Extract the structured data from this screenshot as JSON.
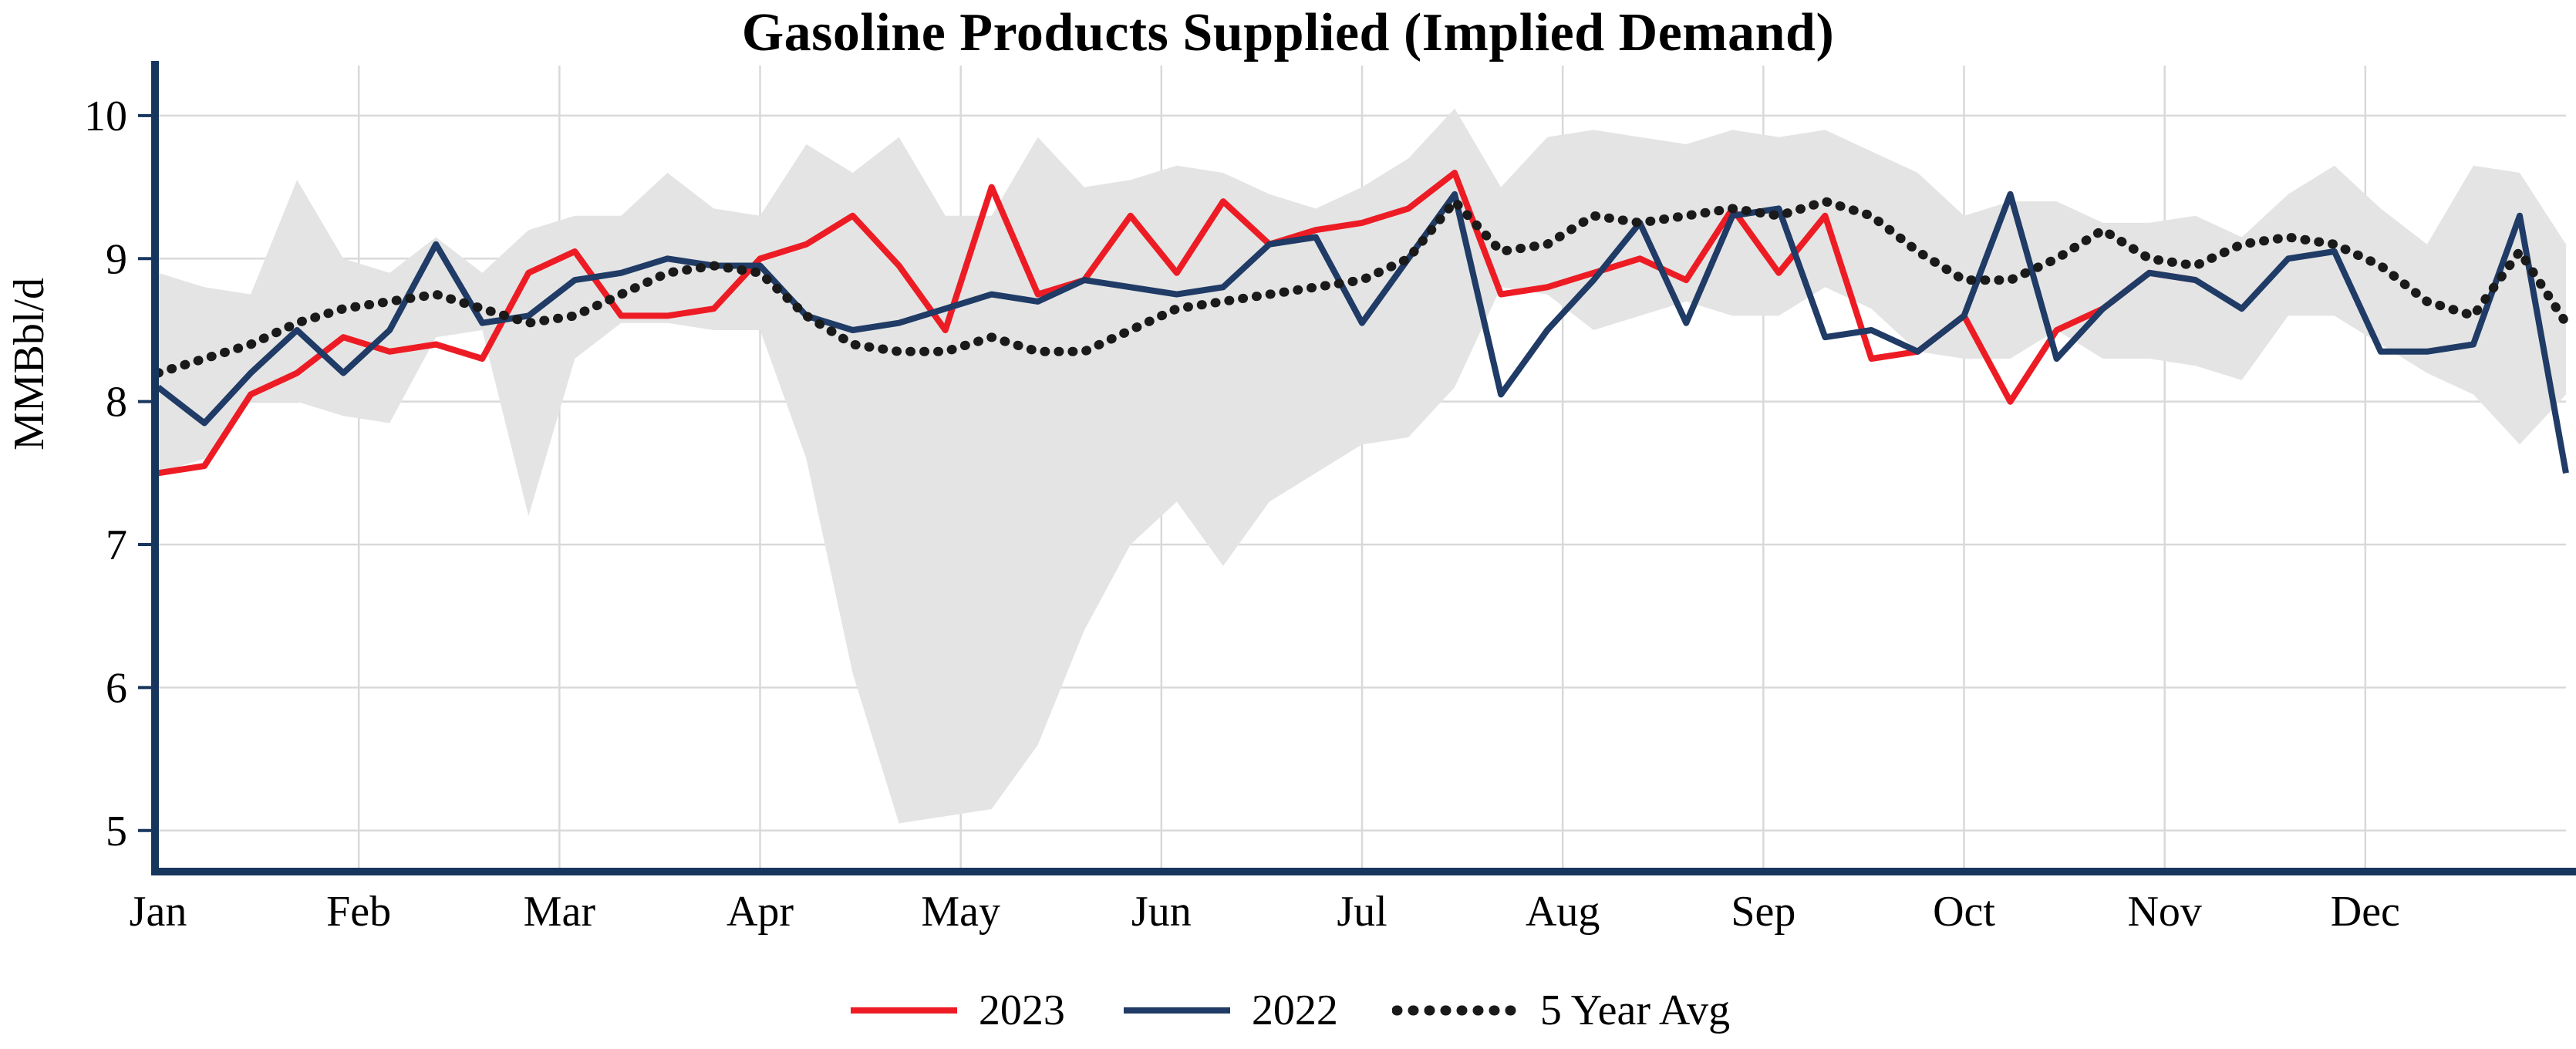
{
  "title": "Gasoline Products Supplied (Implied Demand)",
  "chart_data": {
    "type": "line",
    "title": "Gasoline Products Supplied (Implied Demand)",
    "ylabel": "MMBbl/d",
    "ylim": [
      4.74,
      10.35
    ],
    "yticks": [
      5,
      6,
      7,
      8,
      9,
      10
    ],
    "x_unit": "week",
    "months": [
      "Jan",
      "Feb",
      "Mar",
      "Apr",
      "May",
      "Jun",
      "Jul",
      "Aug",
      "Sep",
      "Oct",
      "Nov",
      "Dec"
    ],
    "grid": true,
    "legend_position": "bottom",
    "axis_color": "#17365d",
    "grid_color": "#d9d9d9",
    "band": {
      "name": "5 Year Range",
      "color": "#e4e4e4",
      "upper": [
        8.9,
        8.8,
        8.75,
        9.55,
        9.0,
        8.9,
        9.15,
        8.9,
        9.2,
        9.3,
        9.3,
        9.6,
        9.35,
        9.3,
        9.8,
        9.6,
        9.85,
        9.3,
        9.3,
        9.85,
        9.5,
        9.55,
        9.65,
        9.6,
        9.45,
        9.35,
        9.5,
        9.7,
        10.05,
        9.5,
        9.85,
        9.9,
        9.85,
        9.8,
        9.9,
        9.85,
        9.9,
        9.75,
        9.6,
        9.3,
        9.4,
        9.4,
        9.25,
        9.25,
        9.3,
        9.15,
        9.45,
        9.65,
        9.35,
        9.1,
        9.65,
        9.6,
        9.1
      ],
      "lower": [
        7.5,
        7.6,
        8.0,
        8.0,
        7.9,
        7.85,
        8.45,
        8.5,
        7.2,
        8.3,
        8.55,
        8.55,
        8.5,
        8.5,
        7.6,
        6.1,
        5.05,
        5.1,
        5.15,
        5.6,
        6.4,
        7.0,
        7.3,
        6.85,
        7.3,
        7.5,
        7.7,
        7.75,
        8.1,
        8.8,
        8.75,
        8.5,
        8.6,
        8.7,
        8.6,
        8.6,
        8.8,
        8.65,
        8.35,
        8.3,
        8.3,
        8.5,
        8.3,
        8.3,
        8.25,
        8.15,
        8.6,
        8.6,
        8.4,
        8.2,
        8.05,
        7.7,
        8.05
      ]
    },
    "series": [
      {
        "name": "2023",
        "color": "#ed1c24",
        "style": "solid",
        "values": [
          7.5,
          7.55,
          8.05,
          8.2,
          8.45,
          8.35,
          8.4,
          8.3,
          8.9,
          9.05,
          8.6,
          8.6,
          8.65,
          9.0,
          9.1,
          9.3,
          8.95,
          8.5,
          9.5,
          8.75,
          8.85,
          9.3,
          8.9,
          9.4,
          9.1,
          9.2,
          9.25,
          9.35,
          9.6,
          8.75,
          8.8,
          8.9,
          9.0,
          8.85,
          9.35,
          8.9,
          9.3,
          8.3,
          8.35,
          8.6,
          8.0,
          8.5,
          8.65,
          8.9,
          8.85
        ]
      },
      {
        "name": "2022",
        "color": "#1f3b66",
        "style": "solid",
        "values": [
          8.1,
          7.85,
          8.2,
          8.5,
          8.2,
          8.5,
          9.1,
          8.55,
          8.6,
          8.85,
          8.9,
          9.0,
          8.95,
          8.95,
          8.6,
          8.5,
          8.55,
          8.65,
          8.75,
          8.7,
          8.85,
          8.8,
          8.75,
          8.8,
          9.1,
          9.15,
          8.55,
          9.0,
          9.45,
          8.05,
          8.5,
          8.85,
          9.25,
          8.55,
          9.3,
          9.35,
          8.45,
          8.5,
          8.35,
          8.6,
          9.45,
          8.3,
          8.65,
          8.9,
          8.85,
          8.65,
          9.0,
          9.05,
          8.35,
          8.35,
          8.4,
          9.3,
          7.5
        ]
      },
      {
        "name": "5 Year Avg",
        "color": "#1a1a1a",
        "style": "dotted",
        "values": [
          8.2,
          8.3,
          8.4,
          8.55,
          8.65,
          8.7,
          8.75,
          8.65,
          8.55,
          8.6,
          8.75,
          8.9,
          8.95,
          8.9,
          8.6,
          8.4,
          8.35,
          8.35,
          8.45,
          8.35,
          8.35,
          8.5,
          8.65,
          8.7,
          8.75,
          8.8,
          8.85,
          9.0,
          9.4,
          9.05,
          9.1,
          9.3,
          9.25,
          9.3,
          9.35,
          9.3,
          9.4,
          9.3,
          9.05,
          8.85,
          8.85,
          9.0,
          9.2,
          9.0,
          8.95,
          9.1,
          9.15,
          9.1,
          8.95,
          8.7,
          8.6,
          9.05,
          8.55
        ]
      }
    ]
  }
}
